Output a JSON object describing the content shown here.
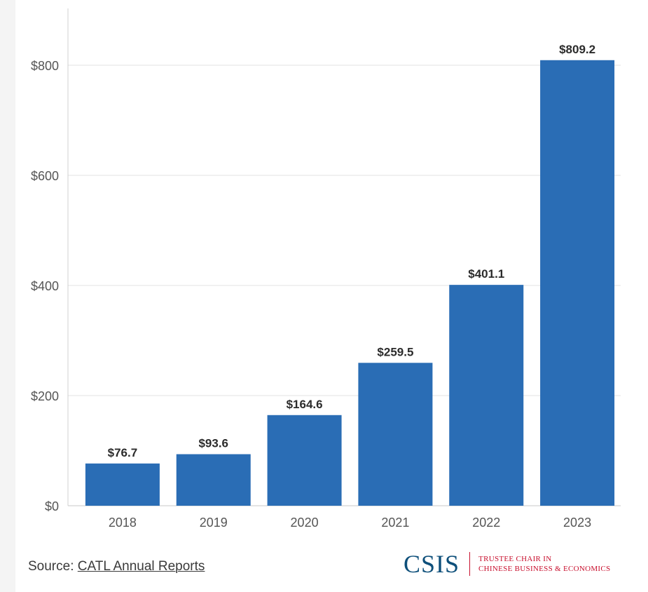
{
  "chart_data": {
    "type": "bar",
    "categories": [
      "2018",
      "2019",
      "2020",
      "2021",
      "2022",
      "2023"
    ],
    "values": [
      76.7,
      93.6,
      164.6,
      259.5,
      401.1,
      809.2
    ],
    "data_labels": [
      "$76.7",
      "$93.6",
      "$164.6",
      "$259.5",
      "$401.1",
      "$809.2"
    ],
    "yticks": [
      0,
      200,
      400,
      600,
      800
    ],
    "ytick_labels": [
      "$0",
      "$200",
      "$400",
      "$600",
      "$800"
    ],
    "ylim": [
      0,
      900
    ],
    "title": "",
    "xlabel": "",
    "ylabel": "",
    "grid": "horizontal",
    "bar_color": "#2a6db5"
  },
  "footer": {
    "source_prefix": "Source:",
    "source_link": "CATL Annual Reports"
  },
  "logo": {
    "wordmark": "CSIS",
    "line1": "TRUSTEE CHAIR IN",
    "line2": "CHINESE BUSINESS & ECONOMICS",
    "primary_color": "#0d4f7a",
    "accent_color": "#c8102e"
  }
}
